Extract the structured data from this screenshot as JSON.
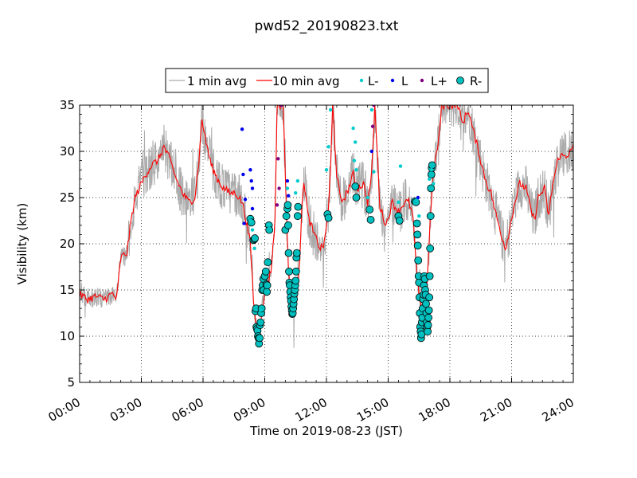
{
  "chart_data": {
    "type": "line",
    "title": "pwd52_20190823.txt",
    "xlabel": "Time on 2019-08-23 (JST)",
    "ylabel": "Visibility (km)",
    "xlim": [
      0,
      24
    ],
    "ylim": [
      5,
      35
    ],
    "x_ticks": [
      {
        "v": 0,
        "label": "00:00"
      },
      {
        "v": 3,
        "label": "03:00"
      },
      {
        "v": 6,
        "label": "06:00"
      },
      {
        "v": 9,
        "label": "09:00"
      },
      {
        "v": 12,
        "label": "12:00"
      },
      {
        "v": 15,
        "label": "15:00"
      },
      {
        "v": 18,
        "label": "18:00"
      },
      {
        "v": 21,
        "label": "21:00"
      },
      {
        "v": 24,
        "label": "24:00"
      }
    ],
    "y_ticks": [
      5,
      10,
      15,
      20,
      25,
      30,
      35
    ],
    "grid": true,
    "legend_position": "above plot",
    "legend": [
      {
        "label": "1 min avg",
        "kind": "line",
        "color": "#aaaaaa"
      },
      {
        "label": "10 min avg",
        "kind": "line",
        "color": "#ff0000"
      },
      {
        "label": "L-",
        "kind": "dot",
        "color": "#00cccc"
      },
      {
        "label": "L",
        "kind": "dot",
        "color": "#0000ee"
      },
      {
        "label": "L+",
        "kind": "dot",
        "color": "#800080"
      },
      {
        "label": "R-",
        "kind": "circle",
        "color": "#00bfbf"
      }
    ],
    "series": [
      {
        "name": "10 min avg",
        "color": "#ff0000",
        "points": [
          [
            0.0,
            14.5
          ],
          [
            0.4,
            14.0
          ],
          [
            0.8,
            14.3
          ],
          [
            1.2,
            14.0
          ],
          [
            1.6,
            14.6
          ],
          [
            1.8,
            14.0
          ],
          [
            2.0,
            18.5
          ],
          [
            2.3,
            19.0
          ],
          [
            2.5,
            22.5
          ],
          [
            2.7,
            25.0
          ],
          [
            3.0,
            26.5
          ],
          [
            3.2,
            27.5
          ],
          [
            3.5,
            28.5
          ],
          [
            3.8,
            29.0
          ],
          [
            4.1,
            30.5
          ],
          [
            4.4,
            29.0
          ],
          [
            4.7,
            27.0
          ],
          [
            5.0,
            25.5
          ],
          [
            5.3,
            24.5
          ],
          [
            5.6,
            25.0
          ],
          [
            5.8,
            29.0
          ],
          [
            5.95,
            33.5
          ],
          [
            6.1,
            31.5
          ],
          [
            6.4,
            28.5
          ],
          [
            6.7,
            27.0
          ],
          [
            7.0,
            26.0
          ],
          [
            7.3,
            25.5
          ],
          [
            7.6,
            25.5
          ],
          [
            7.9,
            24.5
          ],
          [
            8.1,
            22.5
          ],
          [
            8.3,
            20.0
          ],
          [
            8.45,
            14.0
          ],
          [
            8.6,
            10.5
          ],
          [
            8.75,
            10.5
          ],
          [
            8.9,
            13.5
          ],
          [
            9.1,
            15.5
          ],
          [
            9.3,
            17.0
          ],
          [
            9.5,
            22.5
          ],
          [
            9.6,
            35.0
          ],
          [
            9.9,
            35.0
          ],
          [
            10.05,
            24.0
          ],
          [
            10.15,
            17.0
          ],
          [
            10.3,
            14.0
          ],
          [
            10.5,
            13.0
          ],
          [
            10.6,
            15.5
          ],
          [
            10.7,
            18.5
          ],
          [
            10.8,
            23.5
          ],
          [
            10.9,
            27.0
          ],
          [
            11.1,
            23.0
          ],
          [
            11.4,
            21.0
          ],
          [
            11.7,
            19.5
          ],
          [
            11.9,
            20.0
          ],
          [
            12.1,
            24.0
          ],
          [
            12.2,
            28.0
          ],
          [
            12.3,
            35.0
          ],
          [
            12.5,
            27.5
          ],
          [
            12.7,
            24.5
          ],
          [
            13.0,
            25.5
          ],
          [
            13.3,
            27.5
          ],
          [
            13.5,
            26.0
          ],
          [
            13.8,
            26.5
          ],
          [
            14.0,
            24.5
          ],
          [
            14.2,
            27.5
          ],
          [
            14.35,
            35.0
          ],
          [
            14.6,
            24.0
          ],
          [
            14.9,
            22.0
          ],
          [
            15.2,
            24.5
          ],
          [
            15.5,
            23.5
          ],
          [
            15.8,
            24.5
          ],
          [
            16.0,
            24.5
          ],
          [
            16.2,
            23.0
          ],
          [
            16.35,
            18.0
          ],
          [
            16.5,
            14.0
          ],
          [
            16.65,
            13.0
          ],
          [
            16.8,
            12.5
          ],
          [
            16.9,
            16.0
          ],
          [
            17.0,
            21.0
          ],
          [
            17.2,
            28.0
          ],
          [
            17.45,
            31.0
          ],
          [
            17.6,
            35.0
          ],
          [
            18.0,
            35.0
          ],
          [
            18.4,
            35.0
          ],
          [
            18.6,
            33.0
          ],
          [
            18.9,
            34.5
          ],
          [
            19.1,
            32.5
          ],
          [
            19.4,
            30.0
          ],
          [
            19.6,
            28.0
          ],
          [
            19.8,
            26.5
          ],
          [
            20.0,
            25.5
          ],
          [
            20.2,
            23.5
          ],
          [
            20.5,
            21.0
          ],
          [
            20.7,
            19.5
          ],
          [
            20.9,
            21.5
          ],
          [
            21.1,
            24.0
          ],
          [
            21.4,
            26.5
          ],
          [
            21.7,
            26.0
          ],
          [
            21.9,
            24.0
          ],
          [
            22.1,
            22.5
          ],
          [
            22.3,
            25.0
          ],
          [
            22.6,
            26.0
          ],
          [
            22.8,
            23.0
          ],
          [
            23.0,
            26.5
          ],
          [
            23.3,
            29.5
          ],
          [
            23.6,
            29.5
          ],
          [
            23.9,
            30.0
          ],
          [
            24.0,
            30.5
          ]
        ]
      }
    ],
    "noisy_series": {
      "name": "1 min avg",
      "color": "#aaaaaa",
      "note": "jittered around 10 min avg"
    },
    "markers": {
      "R-": [
        [
          8.3,
          22.7
        ],
        [
          8.35,
          22.3
        ],
        [
          8.45,
          20.4
        ],
        [
          8.5,
          20.5
        ],
        [
          8.52,
          20.6
        ],
        [
          8.55,
          12.7
        ],
        [
          8.58,
          13.0
        ],
        [
          8.6,
          11.0
        ],
        [
          8.62,
          10.8
        ],
        [
          8.65,
          10.6
        ],
        [
          8.67,
          10.0
        ],
        [
          8.7,
          9.8
        ],
        [
          8.72,
          9.2
        ],
        [
          8.75,
          9.8
        ],
        [
          8.77,
          11.2
        ],
        [
          8.8,
          11.5
        ],
        [
          8.83,
          12.5
        ],
        [
          8.85,
          13.0
        ],
        [
          8.88,
          15.0
        ],
        [
          8.9,
          15.5
        ],
        [
          8.93,
          16.2
        ],
        [
          8.95,
          15.0
        ],
        [
          9.0,
          16.5
        ],
        [
          9.05,
          17.0
        ],
        [
          9.08,
          15.6
        ],
        [
          9.1,
          14.8
        ],
        [
          9.12,
          15.5
        ],
        [
          9.15,
          18.0
        ],
        [
          9.2,
          22.0
        ],
        [
          9.22,
          21.5
        ],
        [
          10.0,
          21.5
        ],
        [
          10.05,
          23.0
        ],
        [
          10.1,
          23.8
        ],
        [
          10.12,
          24.2
        ],
        [
          10.14,
          22.0
        ],
        [
          10.16,
          19.0
        ],
        [
          10.18,
          17.0
        ],
        [
          10.2,
          15.8
        ],
        [
          10.22,
          15.5
        ],
        [
          10.24,
          14.8
        ],
        [
          10.26,
          14.2
        ],
        [
          10.28,
          13.8
        ],
        [
          10.3,
          13.2
        ],
        [
          10.32,
          12.8
        ],
        [
          10.34,
          12.4
        ],
        [
          10.36,
          12.5
        ],
        [
          10.38,
          13.0
        ],
        [
          10.4,
          13.5
        ],
        [
          10.42,
          14.0
        ],
        [
          10.44,
          14.6
        ],
        [
          10.46,
          15.0
        ],
        [
          10.48,
          15.5
        ],
        [
          10.5,
          16.0
        ],
        [
          10.52,
          17.0
        ],
        [
          10.54,
          18.5
        ],
        [
          10.56,
          19.0
        ],
        [
          10.6,
          23.0
        ],
        [
          10.62,
          24.0
        ],
        [
          12.05,
          23.2
        ],
        [
          12.1,
          22.8
        ],
        [
          13.4,
          26.2
        ],
        [
          13.45,
          25.0
        ],
        [
          14.1,
          23.7
        ],
        [
          14.15,
          22.6
        ],
        [
          15.5,
          23.0
        ],
        [
          15.55,
          22.5
        ],
        [
          16.3,
          24.6
        ],
        [
          16.35,
          24.5
        ],
        [
          16.4,
          22.2
        ],
        [
          16.42,
          21.0
        ],
        [
          16.44,
          19.8
        ],
        [
          16.46,
          18.2
        ],
        [
          16.48,
          16.5
        ],
        [
          16.5,
          15.8
        ],
        [
          16.52,
          14.2
        ],
        [
          16.54,
          12.5
        ],
        [
          16.56,
          11.0
        ],
        [
          16.58,
          10.5
        ],
        [
          16.6,
          9.8
        ],
        [
          16.62,
          10.2
        ],
        [
          16.64,
          11.5
        ],
        [
          16.66,
          12.0
        ],
        [
          16.68,
          13.0
        ],
        [
          16.7,
          14.0
        ],
        [
          16.72,
          14.5
        ],
        [
          16.74,
          15.5
        ],
        [
          16.76,
          16.5
        ],
        [
          16.78,
          16.2
        ],
        [
          16.8,
          15.0
        ],
        [
          16.82,
          14.5
        ],
        [
          16.84,
          13.5
        ],
        [
          16.86,
          12.5
        ],
        [
          16.88,
          11.5
        ],
        [
          16.9,
          11.0
        ],
        [
          16.92,
          10.5
        ],
        [
          16.94,
          11.2
        ],
        [
          16.96,
          12.0
        ],
        [
          16.98,
          12.8
        ],
        [
          17.0,
          14.2
        ],
        [
          17.02,
          16.5
        ],
        [
          17.04,
          19.5
        ],
        [
          17.06,
          23.0
        ],
        [
          17.08,
          26.0
        ],
        [
          17.1,
          27.5
        ],
        [
          17.12,
          28.2
        ],
        [
          17.14,
          28.5
        ]
      ],
      "L-": [
        [
          8.3,
          22.5
        ],
        [
          8.4,
          21.5
        ],
        [
          8.5,
          19.5
        ],
        [
          8.8,
          12.8
        ],
        [
          9.2,
          22.0
        ],
        [
          10.1,
          26.0
        ],
        [
          10.5,
          25.5
        ],
        [
          10.6,
          26.8
        ],
        [
          12.1,
          30.5
        ],
        [
          12.2,
          34.5
        ],
        [
          12.0,
          28.0
        ],
        [
          13.3,
          32.5
        ],
        [
          13.4,
          31.0
        ],
        [
          13.35,
          29.0
        ],
        [
          13.45,
          28.0
        ],
        [
          14.0,
          25.0
        ],
        [
          14.3,
          27.8
        ],
        [
          14.2,
          34.5
        ],
        [
          15.6,
          28.4
        ],
        [
          15.5,
          24.5
        ],
        [
          16.4,
          24.8
        ],
        [
          16.5,
          23.0
        ],
        [
          17.0,
          27.0
        ],
        [
          17.1,
          28.0
        ],
        [
          17.2,
          26.5
        ]
      ],
      "L": [
        [
          7.9,
          32.4
        ],
        [
          7.95,
          27.5
        ],
        [
          8.05,
          24.8
        ],
        [
          8.3,
          28.0
        ],
        [
          8.35,
          26.8
        ],
        [
          8.4,
          26.0
        ],
        [
          8.4,
          23.8
        ],
        [
          8.0,
          22.2
        ],
        [
          10.1,
          26.8
        ],
        [
          10.15,
          25.2
        ],
        [
          14.2,
          30.0
        ],
        [
          16.45,
          25.0
        ]
      ],
      "L+": [
        [
          9.65,
          29.2
        ],
        [
          9.7,
          26.0
        ],
        [
          9.6,
          24.2
        ],
        [
          9.8,
          35.0
        ],
        [
          14.25,
          32.7
        ],
        [
          14.3,
          35.0
        ]
      ]
    }
  }
}
